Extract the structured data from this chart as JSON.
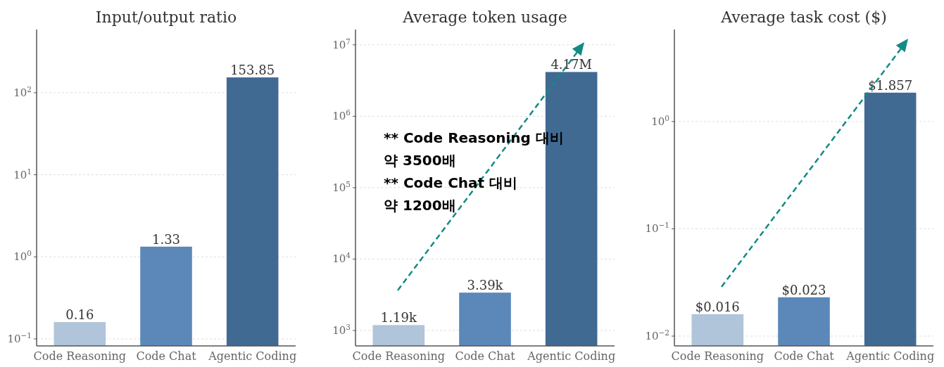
{
  "chart_data": [
    {
      "type": "bar",
      "title": "Input/output ratio",
      "categories": [
        "Code Reasoning",
        "Code Chat",
        "Agentic Coding"
      ],
      "values": [
        0.16,
        1.33,
        153.85
      ],
      "colors": [
        "#b0c4da",
        "#5b88b9",
        "#416a93"
      ],
      "log": "y",
      "ylim": [
        0.082,
        590
      ],
      "yticks": [
        {
          "value": 0.1,
          "label": "10$^{−1}$"
        },
        {
          "value": 1,
          "label": "10$^{0}$"
        },
        {
          "value": 10,
          "label": "10$^{1}$"
        },
        {
          "value": 100,
          "label": "10$^{2}$"
        }
      ],
      "grid": "y",
      "data_labels": true
    },
    {
      "type": "bar",
      "title": "Average token usage",
      "categories": [
        "Code Reasoning",
        "Code Chat",
        "Agentic Coding"
      ],
      "values": [
        1190,
        3390,
        4170000
      ],
      "colors": [
        "#b0c4da",
        "#5b88b9",
        "#416a93"
      ],
      "value_labels": [
        "1.19k",
        "3.39k",
        "4.17M"
      ],
      "log": "y",
      "ylim": [
        608,
        16400000
      ],
      "yticks": [
        {
          "value": 1000,
          "label": "10$^{3}$"
        },
        {
          "value": 10000,
          "label": "10$^{4}$"
        },
        {
          "value": 100000,
          "label": "10$^{5}$"
        },
        {
          "value": 1000000,
          "label": "10$^{6}$"
        },
        {
          "value": 10000000,
          "label": "10$^{7}$"
        }
      ],
      "grid": "y",
      "annotations": [
        "** Code Reasoning 대비\n약 3500배\n** Code Chat 대비\n약 1200배"
      ]
    },
    {
      "type": "bar",
      "title": "Average task cost ($)",
      "categories": [
        "Code Reasoning",
        "Code Chat",
        "Agentic Coding"
      ],
      "values": [
        0.016,
        0.023,
        1.857
      ],
      "colors": [
        "#b0c4da",
        "#5b88b9",
        "#416a93"
      ],
      "value_labels": [
        "$0.016",
        "$0.023",
        "$1.857"
      ],
      "log": "y",
      "ylim": [
        0.0081,
        7.2
      ],
      "yticks": [
        {
          "value": 0.01,
          "label": "10$^{−2}$"
        },
        {
          "value": 0.1,
          "label": "10$^{−1}$"
        },
        {
          "value": 1,
          "label": "10$^{0}$"
        }
      ],
      "grid": "y"
    }
  ]
}
